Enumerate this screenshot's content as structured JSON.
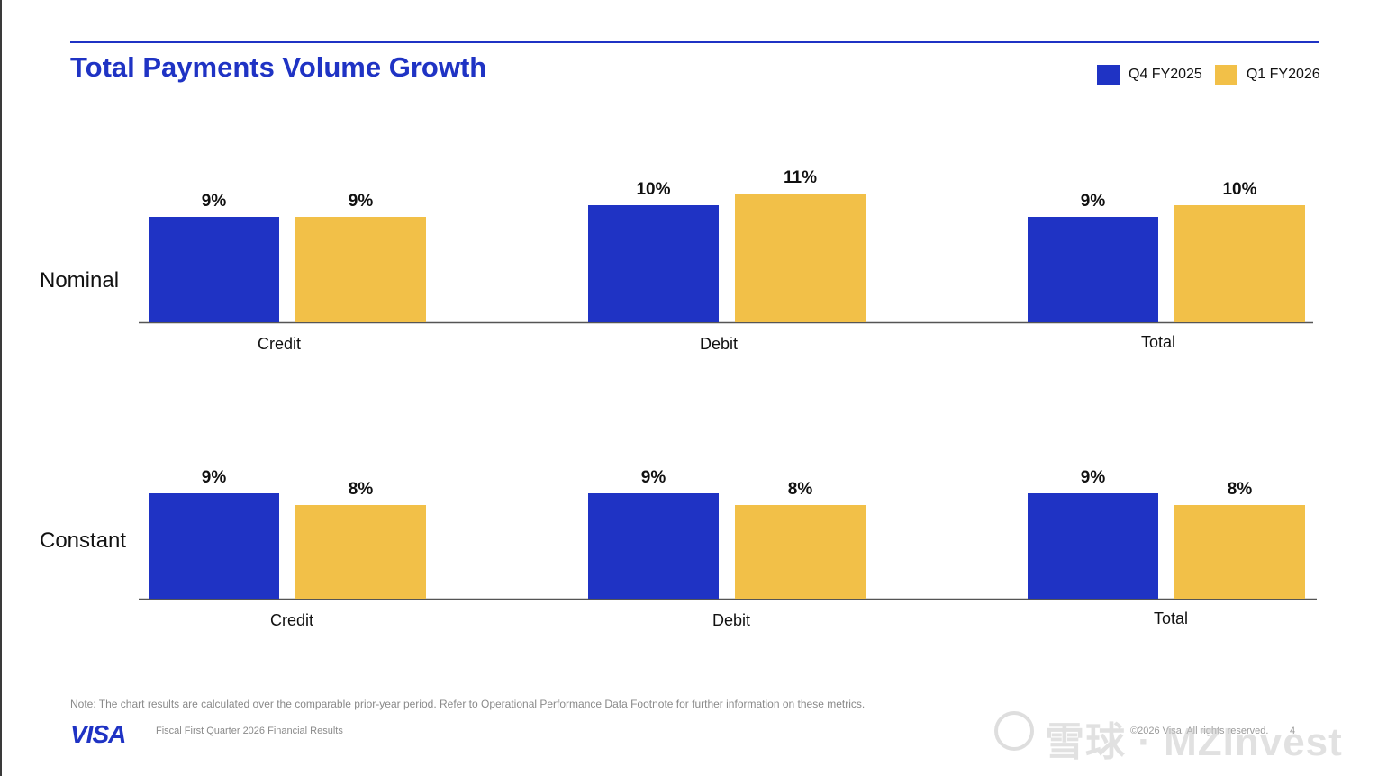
{
  "title": "Total Payments Volume Growth",
  "legend": [
    {
      "label": "Q4 FY2025",
      "color": "#1f33c4"
    },
    {
      "label": "Q1 FY2026",
      "color": "#f2c048"
    }
  ],
  "chart_data": [
    {
      "type": "bar",
      "row_label": "Nominal",
      "categories": [
        "Credit",
        "Debit",
        "Total"
      ],
      "series": [
        {
          "name": "Q4 FY2025",
          "values": [
            9,
            10,
            9
          ],
          "labels": [
            "9%",
            "10%",
            "9%"
          ],
          "color": "#1f33c4"
        },
        {
          "name": "Q1 FY2026",
          "values": [
            9,
            11,
            10
          ],
          "labels": [
            "9%",
            "11%",
            "10%"
          ],
          "color": "#f2c048"
        }
      ],
      "unit": "%",
      "ylim": [
        0,
        11
      ]
    },
    {
      "type": "bar",
      "row_label": "Constant",
      "categories": [
        "Credit",
        "Debit",
        "Total"
      ],
      "series": [
        {
          "name": "Q4 FY2025",
          "values": [
            9,
            9,
            9
          ],
          "labels": [
            "9%",
            "9%",
            "9%"
          ],
          "color": "#1f33c4"
        },
        {
          "name": "Q1 FY2026",
          "values": [
            8,
            8,
            8
          ],
          "labels": [
            "8%",
            "8%",
            "8%"
          ],
          "color": "#f2c048"
        }
      ],
      "unit": "%",
      "ylim": [
        0,
        11
      ]
    }
  ],
  "footer": {
    "note": "Note: The chart results are calculated over the comparable prior-year period. Refer to Operational Performance Data Footnote for further information on these metrics.",
    "logo": "VISA",
    "subtitle": "Fiscal First Quarter 2026 Financial Results",
    "copyright": "©2026 Visa. All rights reserved.",
    "page": "4"
  },
  "watermark": "雪球 · MZInvest"
}
